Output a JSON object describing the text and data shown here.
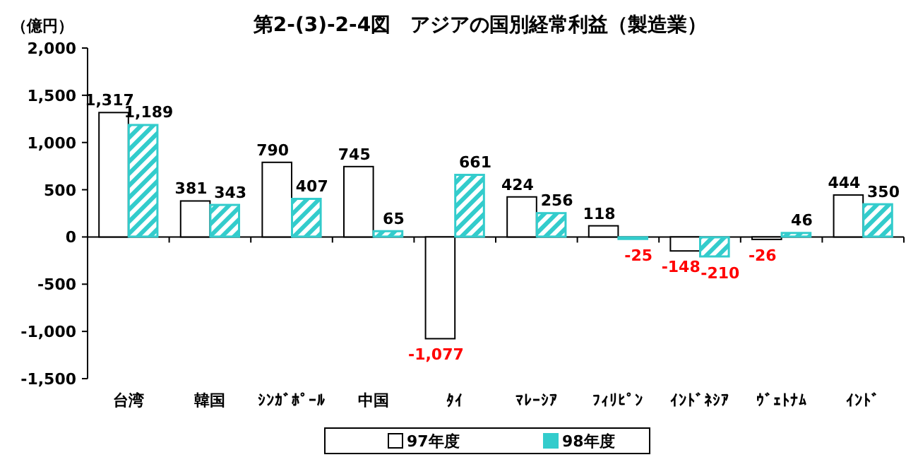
{
  "chart_data": {
    "type": "bar",
    "title": "第2-(3)-2-4図　アジアの国別経常利益（製造業）",
    "ylabel": "（億円）",
    "categories": [
      "台湾",
      "韓国",
      "ｼﾝｶﾞﾎﾟｰﾙ",
      "中国",
      "ﾀｲ",
      "ﾏﾚｰｼｱ",
      "ﾌｨﾘﾋﾟﾝ",
      "ｲﾝﾄﾞﾈｼｱ",
      "ｳﾞｪﾄﾅﾑ",
      "ｲﾝﾄﾞ"
    ],
    "series": [
      {
        "name": "97年度",
        "color": "#ffffff",
        "values": [
          1317,
          381,
          790,
          745,
          -1077,
          424,
          118,
          -148,
          -26,
          444
        ],
        "value_labels": [
          "1,317",
          "381",
          "790",
          "745",
          "-1,077",
          "424",
          "118",
          "-148",
          "-26",
          "444"
        ]
      },
      {
        "name": "98年度",
        "color": "#33cccc",
        "values": [
          1189,
          343,
          407,
          65,
          661,
          256,
          -25,
          -210,
          46,
          350
        ],
        "value_labels": [
          "1,189",
          "343",
          "407",
          "65",
          "661",
          "256",
          "-25",
          "-210",
          "46",
          "350"
        ]
      }
    ],
    "ylim": [
      -1500,
      2000
    ],
    "yticks": [
      {
        "value": -1500,
        "label": "-1,500"
      },
      {
        "value": -1000,
        "label": "-1,000"
      },
      -500,
      0,
      500,
      {
        "value": 1000,
        "label": "1,000"
      },
      {
        "value": 1500,
        "label": "1,500"
      },
      {
        "value": 2000,
        "label": "2,000"
      }
    ],
    "legend": "bottom"
  }
}
